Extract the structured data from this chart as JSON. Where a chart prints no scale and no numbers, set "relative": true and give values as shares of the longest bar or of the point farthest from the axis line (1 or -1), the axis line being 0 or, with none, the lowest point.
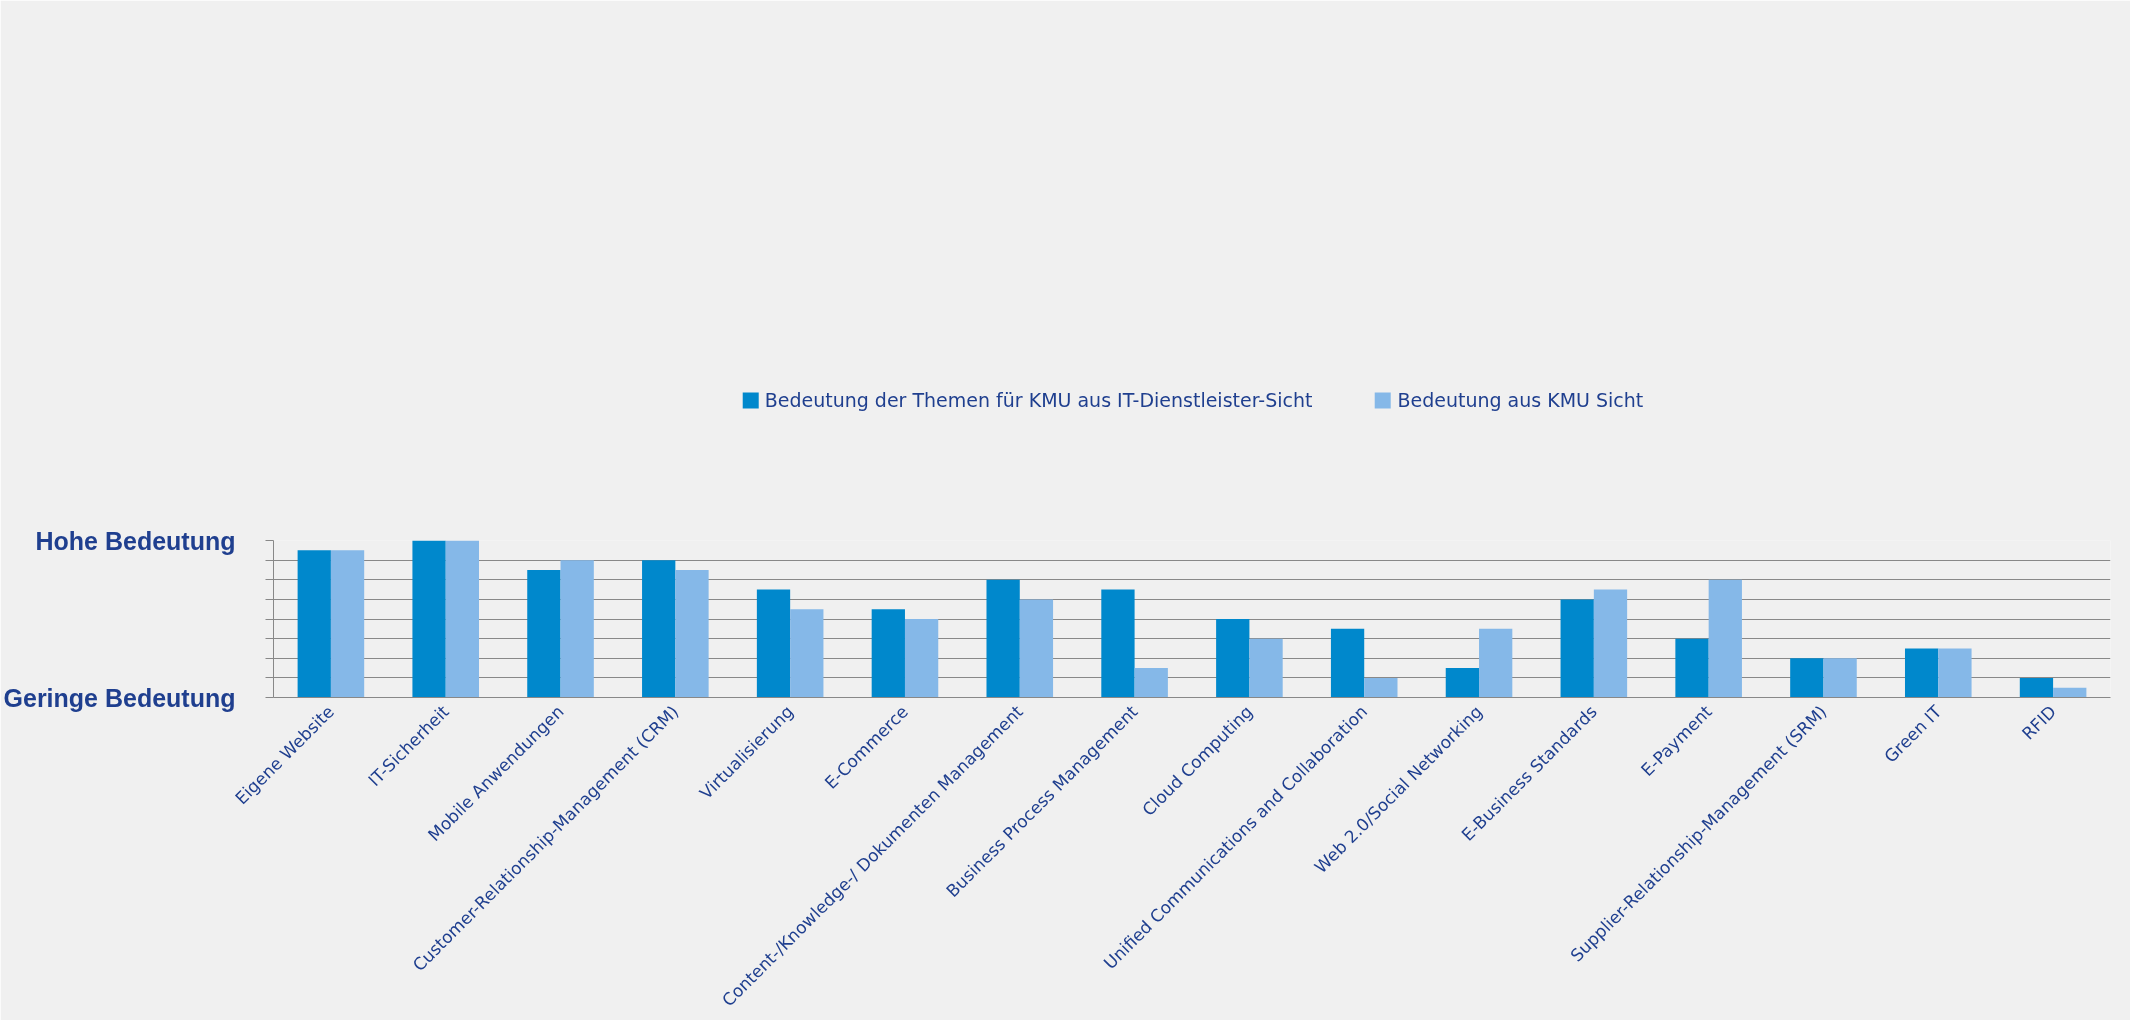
{
  "chart_data": {
    "type": "bar",
    "categories": [
      "Eigene Website",
      "IT-Sicherheit",
      "Mobile Anwendungen",
      "Customer-Relationship-Management (CRM)",
      "Virtualisierung",
      "E-Commerce",
      "Content-/Knowledge-/ Dokumenten Management",
      "Business Process Management",
      "Cloud Computing",
      "Unified Communications and Collaboration",
      "Web 2.0/Social Networking",
      "E-Business Standards",
      "E-Payment",
      "Supplier-Relationship-Management (SRM)",
      "Green IT",
      "RFID"
    ],
    "series": [
      {
        "name": "Bedeutung der Themen für KMU aus IT-Dienstleister-Sicht",
        "color": "#0088cc",
        "values": [
          0.9375,
          1,
          0.8125,
          0.875,
          0.6875,
          0.5625,
          0.75,
          0.6875,
          0.5,
          0.4375,
          0.1875,
          0.625,
          0.375,
          0.25,
          0.3125,
          0.125
        ]
      },
      {
        "name": "Bedeutung aus KMU Sicht",
        "color": "#85b8e8",
        "values": [
          0.9375,
          1,
          0.875,
          0.8125,
          0.5625,
          0.5,
          0.625,
          0.1875,
          0.375,
          0.125,
          0.4375,
          0.6875,
          0.75,
          0.25,
          0.3125,
          0.0625
        ]
      }
    ],
    "relative": true,
    "annotations": [
      "Hohe Bedeutung",
      "Geringe Bedeutung"
    ],
    "grid": "y",
    "legend": "top"
  }
}
